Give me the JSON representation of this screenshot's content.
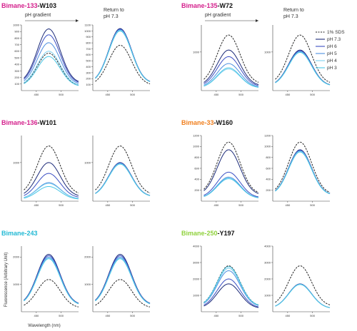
{
  "legend": {
    "items": [
      {
        "key": "sds",
        "label": "1% SDS",
        "color": "#222222",
        "dash": true
      },
      {
        "key": "ph73",
        "label": "pH 7.3",
        "color": "#1b2a78",
        "dash": false
      },
      {
        "key": "ph6",
        "label": "pH 6",
        "color": "#3b4fc4",
        "dash": false
      },
      {
        "key": "ph5",
        "label": "pH 5",
        "color": "#4d8fe0",
        "dash": false
      },
      {
        "key": "ph4",
        "label": "pH 4",
        "color": "#7fd0ee",
        "dash": false
      },
      {
        "key": "ph3",
        "label": "pH 3",
        "color": "#49c6e6",
        "dash": false
      }
    ]
  },
  "headers": {
    "ph_gradient": "pH gradient",
    "return_line1": "Return to",
    "return_line2": "pH 7.3"
  },
  "axes": {
    "ylabel": "Fluorescence (Arbitrary Unit)",
    "xlabel": "Wavelength (nm)"
  },
  "chart_data": [
    {
      "id": "b133",
      "type": "line",
      "title_parts": [
        {
          "text": "Bimane-133",
          "color": "#d4208c"
        },
        {
          "text": "-W103",
          "color": "#111111"
        }
      ],
      "x_ticks": [
        450,
        500
      ],
      "left": {
        "ylim": [
          0,
          1000
        ],
        "yticks": [
          100,
          200,
          300,
          400,
          500,
          600,
          700,
          800,
          900,
          1000
        ],
        "peaks": {
          "sds": 570,
          "ph73": 940,
          "ph6": 850,
          "ph5": 730,
          "ph4": 600,
          "ph3": 520
        }
      },
      "right": {
        "ylim": [
          0,
          1100
        ],
        "yticks": [
          100,
          200,
          300,
          400,
          500,
          600,
          700,
          800,
          900,
          1000,
          1100
        ],
        "peaks": {
          "sds": 760,
          "ph73": 1040,
          "ph6": 1030,
          "ph5": 1020,
          "ph4": 1010,
          "ph3": 1000
        }
      }
    },
    {
      "id": "b135",
      "type": "line",
      "title_parts": [
        {
          "text": "Bimane-135",
          "color": "#d4208c"
        },
        {
          "text": "-W72",
          "color": "#111111"
        }
      ],
      "x_ticks": [
        450,
        500
      ],
      "left": {
        "ylim": [
          0,
          1700
        ],
        "yticks": [
          1000
        ],
        "peaks": {
          "sds": 1440,
          "ph73": 1050,
          "ph6": 880,
          "ph5": 700,
          "ph4": 560,
          "ph3": 590
        }
      },
      "right": {
        "ylim": [
          0,
          1700
        ],
        "yticks": [
          1000
        ],
        "peaks": {
          "sds": 1440,
          "ph73": 1050,
          "ph6": 1030,
          "ph5": 1010,
          "ph4": 1000,
          "ph3": 990
        }
      }
    },
    {
      "id": "b136",
      "type": "line",
      "title_parts": [
        {
          "text": "Bimane-136",
          "color": "#d4208c"
        },
        {
          "text": "-W101",
          "color": "#111111"
        }
      ],
      "x_ticks": [
        450,
        500
      ],
      "left": {
        "ylim": [
          0,
          1700
        ],
        "yticks": [
          1000
        ],
        "peaks": {
          "sds": 1430,
          "ph73": 1000,
          "ph6": 720,
          "ph5": 480,
          "ph4": 460,
          "ph3": 380
        }
      },
      "right": {
        "ylim": [
          0,
          1700
        ],
        "yticks": [
          1000
        ],
        "peaks": {
          "sds": 1430,
          "ph73": 1000,
          "ph6": 990,
          "ph5": 980,
          "ph4": 970,
          "ph3": 960
        }
      }
    },
    {
      "id": "b33",
      "type": "line",
      "title_parts": [
        {
          "text": "Bimane-33",
          "color": "#f07f1e"
        },
        {
          "text": "-W160",
          "color": "#111111"
        }
      ],
      "x_ticks": [
        450,
        500
      ],
      "left": {
        "ylim": [
          0,
          1200
        ],
        "yticks": [
          200,
          400,
          600,
          800,
          1000,
          1200
        ],
        "peaks": {
          "sds": 1080,
          "ph73": 940,
          "ph6": 530,
          "ph5": 440,
          "ph4": 410,
          "ph3": 420
        }
      },
      "right": {
        "ylim": [
          0,
          1200
        ],
        "yticks": [
          200,
          400,
          600,
          800,
          1000,
          1200
        ],
        "peaks": {
          "sds": 1080,
          "ph73": 940,
          "ph6": 930,
          "ph5": 920,
          "ph4": 910,
          "ph3": 900
        }
      }
    },
    {
      "id": "b243",
      "type": "line",
      "title_parts": [
        {
          "text": "Bimane-243",
          "color": "#22b9d4"
        }
      ],
      "x_ticks": [
        450,
        500
      ],
      "left": {
        "ylim": [
          0,
          2400
        ],
        "yticks": [
          1000,
          2000
        ],
        "peaks": {
          "sds": 1180,
          "ph73": 2100,
          "ph6": 2050,
          "ph5": 2000,
          "ph4": 1960,
          "ph3": 1940
        }
      },
      "right": {
        "ylim": [
          0,
          2400
        ],
        "yticks": [
          1000,
          2000
        ],
        "peaks": {
          "sds": 1180,
          "ph73": 2100,
          "ph6": 2050,
          "ph5": 2000,
          "ph4": 1960,
          "ph3": 1940
        }
      }
    },
    {
      "id": "b250",
      "type": "line",
      "title_parts": [
        {
          "text": "Bimane-250",
          "color": "#8fd13c"
        },
        {
          "text": "-Y197",
          "color": "#111111"
        }
      ],
      "x_ticks": [
        450,
        500
      ],
      "left": {
        "ylim": [
          0,
          4000
        ],
        "yticks": [
          1000,
          2000,
          3000,
          4000
        ],
        "peaks": {
          "sds": 2800,
          "ph73": 1700,
          "ph6": 2000,
          "ph5": 2500,
          "ph4": 2650,
          "ph3": 2750
        }
      },
      "right": {
        "ylim": [
          0,
          4000
        ],
        "yticks": [
          1000,
          2000,
          3000,
          4000
        ],
        "peaks": {
          "sds": 2800,
          "ph73": 1700,
          "ph6": 1690,
          "ph5": 1680,
          "ph4": 1670,
          "ph3": 1660
        }
      }
    }
  ]
}
